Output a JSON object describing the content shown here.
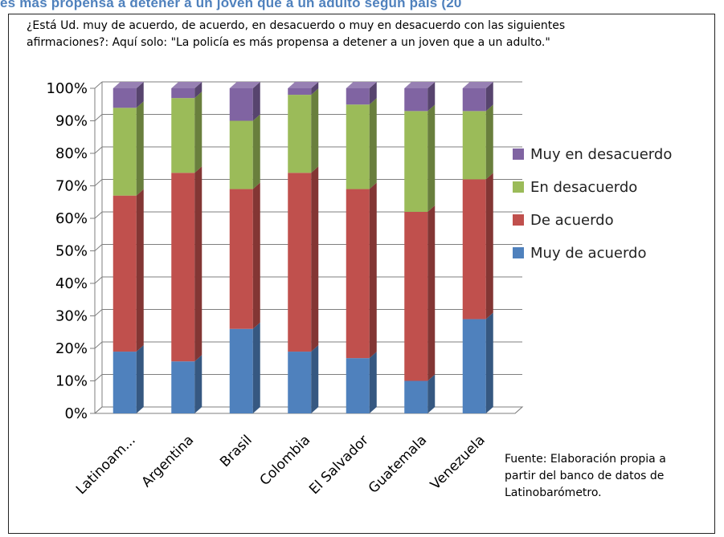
{
  "header": {
    "top_title": "es más propensa a detener a un joven que a un adulto según país (20"
  },
  "chart_data": {
    "type": "bar",
    "stacked": true,
    "percent_stacked": true,
    "title_lines": [
      "¿Está Ud. muy de acuerdo, de acuerdo, en desacuerdo o muy en desacuerdo con las siguientes",
      "afirmaciones?: Aquí solo: \"La policía es más propensa a detener a un joven que a un adulto.\""
    ],
    "categories": [
      "Latinoam...",
      "Argentina",
      "Brasil",
      "Colombia",
      "El Salvador",
      "Guatemala",
      "Venezuela"
    ],
    "series": [
      {
        "name": "Muy de acuerdo",
        "color": "#4f81bd",
        "values": [
          19,
          16,
          26,
          19,
          17,
          10,
          29
        ]
      },
      {
        "name": "De acuerdo",
        "color": "#c0504d",
        "values": [
          48,
          58,
          43,
          55,
          52,
          52,
          43
        ]
      },
      {
        "name": "En desacuerdo",
        "color": "#9bbb59",
        "values": [
          27,
          23,
          21,
          24,
          26,
          31,
          21
        ]
      },
      {
        "name": "Muy en desacuerdo",
        "color": "#8064a2",
        "values": [
          6,
          3,
          10,
          2,
          5,
          7,
          7
        ]
      }
    ],
    "yticks": [
      "0%",
      "10%",
      "20%",
      "30%",
      "40%",
      "50%",
      "60%",
      "70%",
      "80%",
      "90%",
      "100%"
    ],
    "ylim": [
      0,
      100
    ],
    "grid": true,
    "legend_position": "right",
    "source_lines": [
      "Fuente: Elaboración propia a",
      "partir del banco de datos de",
      "Latinobarómetro."
    ]
  }
}
